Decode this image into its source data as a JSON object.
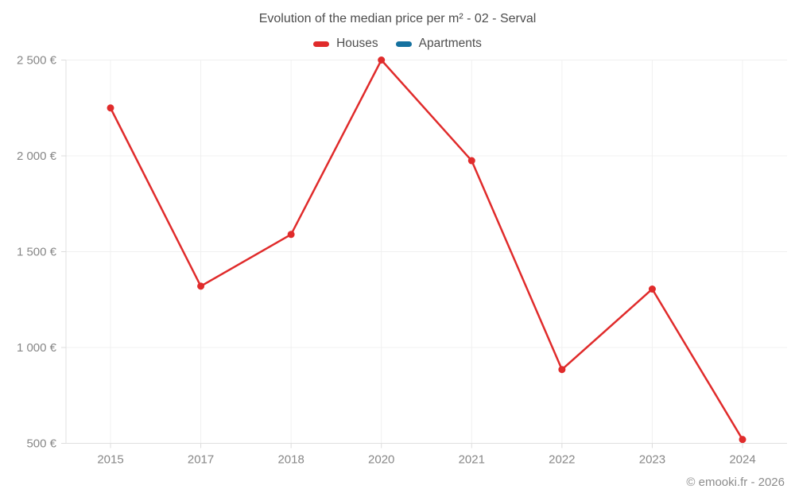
{
  "chart_data": {
    "type": "line",
    "title": "Evolution of the median price per m² - 02 - Serval",
    "categories": [
      "2015",
      "2017",
      "2018",
      "2020",
      "2021",
      "2022",
      "2023",
      "2024"
    ],
    "series": [
      {
        "name": "Houses",
        "color": "#e02b2b",
        "values": [
          2250,
          1320,
          1590,
          2500,
          1975,
          885,
          1305,
          520
        ]
      },
      {
        "name": "Apartments",
        "color": "#15719f",
        "values": []
      }
    ],
    "ylim": [
      500,
      2500
    ],
    "yticks": [
      500,
      1000,
      1500,
      2000,
      2500
    ],
    "ytick_labels": [
      "500 €",
      "1 000 €",
      "1 500 €",
      "2 000 €",
      "2 500 €"
    ],
    "currency": "€",
    "grid": true,
    "legend_position": "top"
  },
  "footer": {
    "copyright": "© emooki.fr - 2026"
  }
}
